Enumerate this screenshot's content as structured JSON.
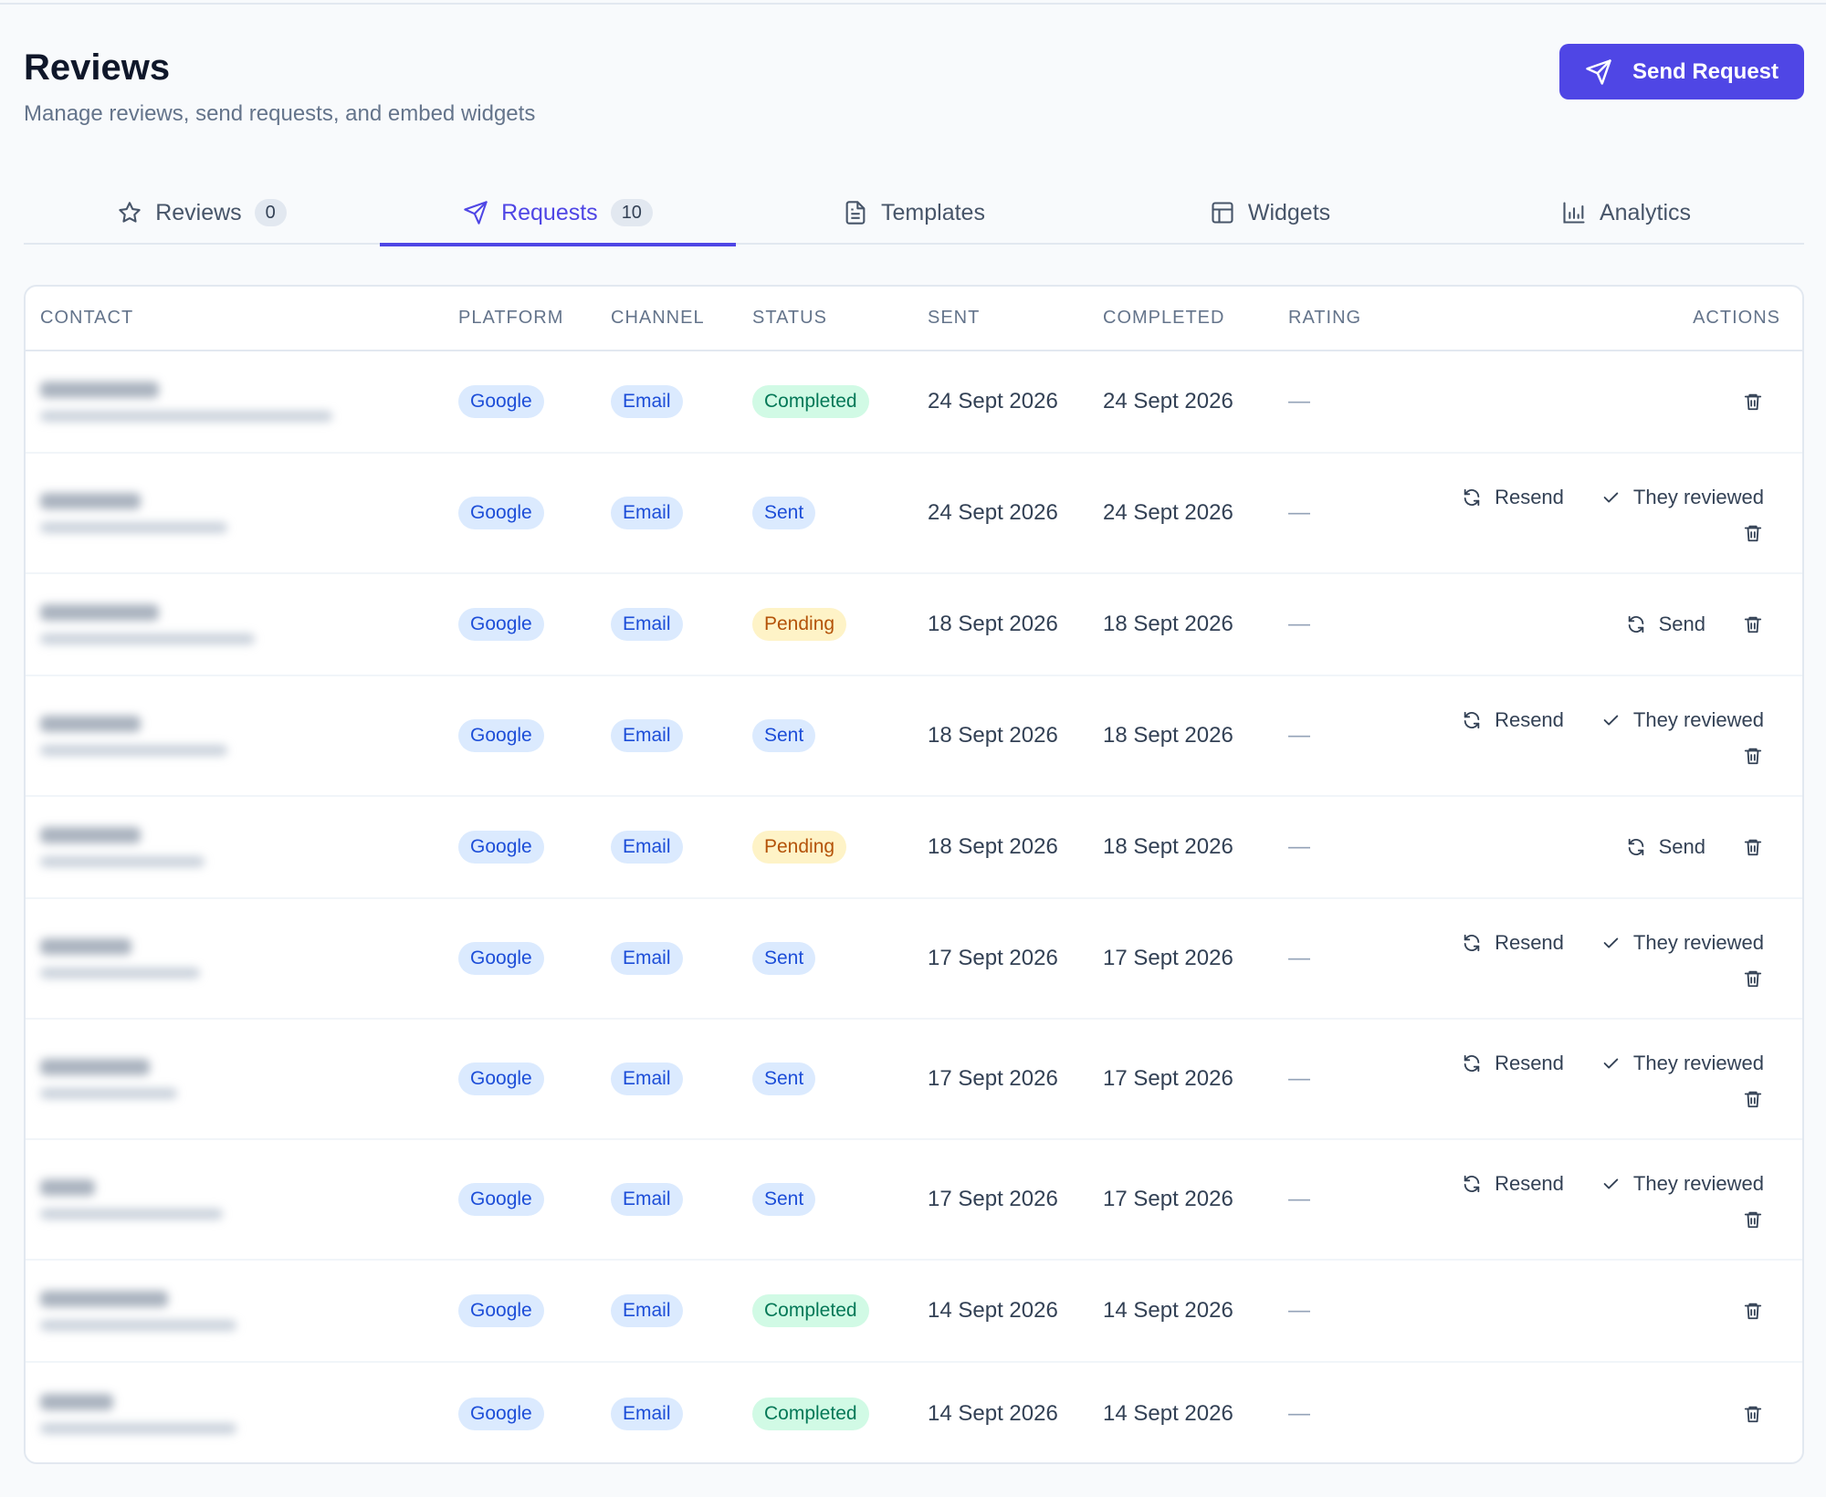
{
  "page": {
    "title": "Reviews",
    "subtitle": "Manage reviews, send requests, and embed widgets",
    "send_button_label": "Send Request",
    "accent_color": "#4f46e5"
  },
  "tabs": [
    {
      "label": "Reviews",
      "count": "0",
      "icon": "star-icon"
    },
    {
      "label": "Requests",
      "count": "10",
      "icon": "send-icon",
      "active": true
    },
    {
      "label": "Templates",
      "icon": "document-icon"
    },
    {
      "label": "Widgets",
      "icon": "layout-icon"
    },
    {
      "label": "Analytics",
      "icon": "bar-chart-icon"
    }
  ],
  "table": {
    "headers": [
      "CONTACT",
      "PLATFORM",
      "CHANNEL",
      "STATUS",
      "SENT",
      "COMPLETED",
      "RATING",
      "ACTIONS"
    ],
    "action_labels": {
      "resend": "Resend",
      "reviewed": "They reviewed",
      "send": "Send"
    },
    "rows": [
      {
        "platform": "Google",
        "channel": "Email",
        "status": "Completed",
        "sent": "24 Sept 2026",
        "completed": "24 Sept 2026",
        "rating": "—"
      },
      {
        "platform": "Google",
        "channel": "Email",
        "status": "Sent",
        "sent": "24 Sept 2026",
        "completed": "24 Sept 2026",
        "rating": "—"
      },
      {
        "platform": "Google",
        "channel": "Email",
        "status": "Pending",
        "sent": "18 Sept 2026",
        "completed": "18 Sept 2026",
        "rating": "—"
      },
      {
        "platform": "Google",
        "channel": "Email",
        "status": "Sent",
        "sent": "18 Sept 2026",
        "completed": "18 Sept 2026",
        "rating": "—"
      },
      {
        "platform": "Google",
        "channel": "Email",
        "status": "Pending",
        "sent": "18 Sept 2026",
        "completed": "18 Sept 2026",
        "rating": "—"
      },
      {
        "platform": "Google",
        "channel": "Email",
        "status": "Sent",
        "sent": "17 Sept 2026",
        "completed": "17 Sept 2026",
        "rating": "—"
      },
      {
        "platform": "Google",
        "channel": "Email",
        "status": "Sent",
        "sent": "17 Sept 2026",
        "completed": "17 Sept 2026",
        "rating": "—"
      },
      {
        "platform": "Google",
        "channel": "Email",
        "status": "Sent",
        "sent": "17 Sept 2026",
        "completed": "17 Sept 2026",
        "rating": "—"
      },
      {
        "platform": "Google",
        "channel": "Email",
        "status": "Completed",
        "sent": "14 Sept 2026",
        "completed": "14 Sept 2026",
        "rating": "—"
      },
      {
        "platform": "Google",
        "channel": "Email",
        "status": "Completed",
        "sent": "14 Sept 2026",
        "completed": "14 Sept 2026",
        "rating": "—"
      }
    ]
  }
}
